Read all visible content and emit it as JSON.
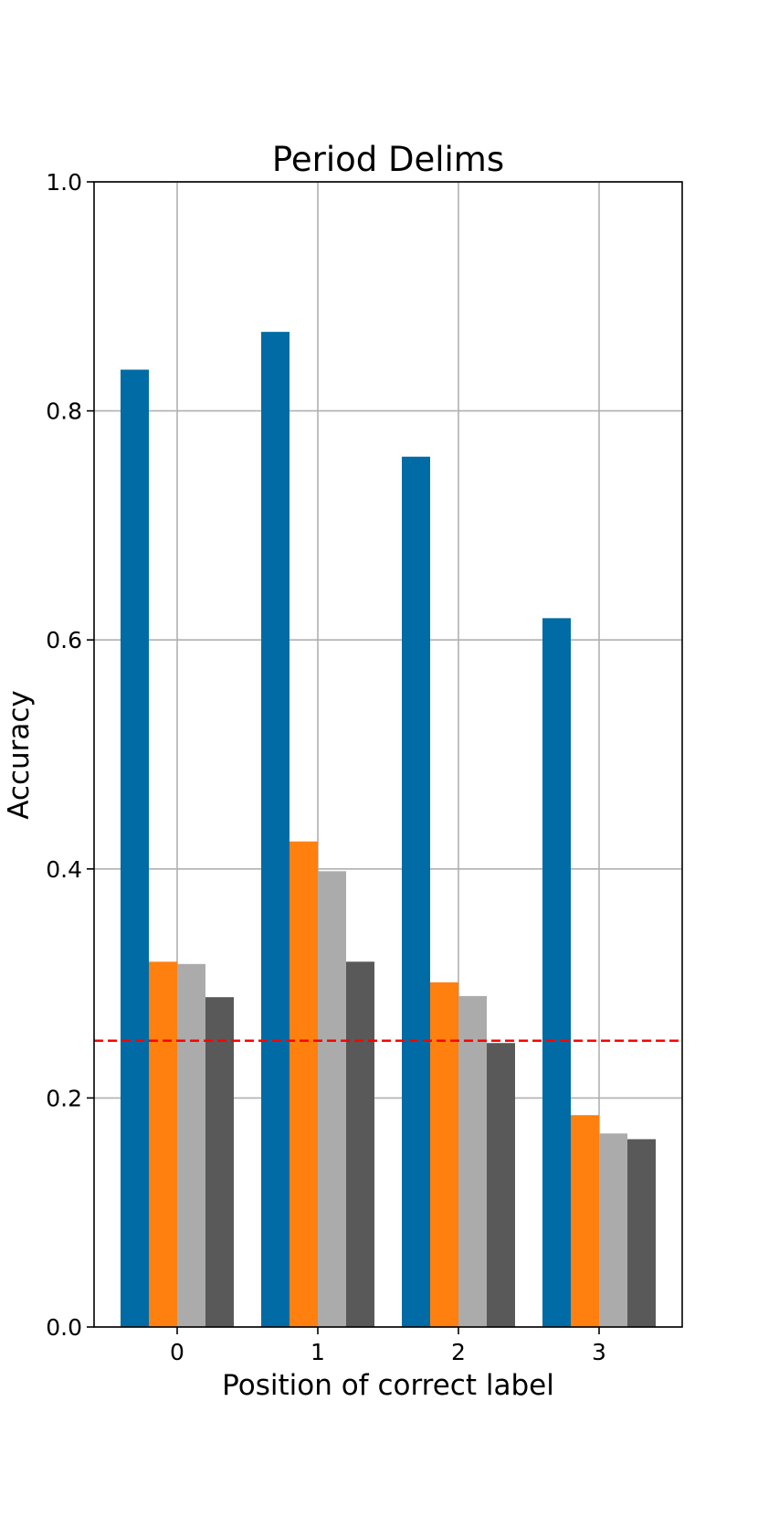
{
  "chart_data": {
    "type": "bar",
    "title": "Period Delims",
    "xlabel": "Position of correct label",
    "ylabel": "Accuracy",
    "ylim": [
      0,
      1.0
    ],
    "yticks": [
      0.0,
      0.2,
      0.4,
      0.6,
      0.8,
      1.0
    ],
    "ytick_labels": [
      "0.0",
      "0.2",
      "0.4",
      "0.6",
      "0.8",
      "1.0"
    ],
    "categories": [
      "0",
      "1",
      "2",
      "3"
    ],
    "grid": true,
    "legend": "none",
    "series": [
      {
        "color": "#006BA4",
        "values": [
          0.836,
          0.869,
          0.76,
          0.619
        ]
      },
      {
        "color": "#FF800E",
        "values": [
          0.319,
          0.424,
          0.301,
          0.185
        ]
      },
      {
        "color": "#ABABAB",
        "values": [
          0.317,
          0.398,
          0.289,
          0.169
        ]
      },
      {
        "color": "#595959",
        "values": [
          0.288,
          0.319,
          0.248,
          0.164
        ]
      }
    ],
    "reference_line": {
      "y": 0.25,
      "color": "#FF0000",
      "style": "dashed"
    }
  }
}
